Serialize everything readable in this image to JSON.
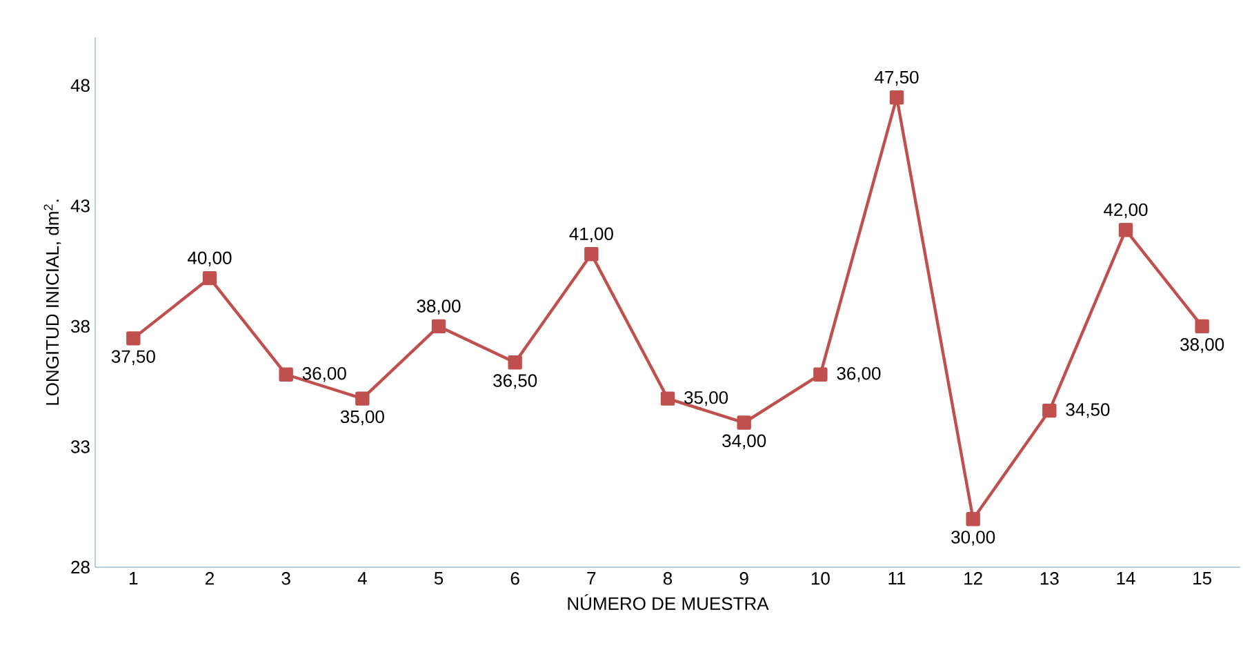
{
  "chart_data": {
    "type": "line",
    "xlabel": "NÚMERO DE MUESTRA",
    "ylabel": "LONGITUD INICIAL, dm$^{2}$.",
    "categories": [
      "1",
      "2",
      "3",
      "4",
      "5",
      "6",
      "7",
      "8",
      "9",
      "10",
      "11",
      "12",
      "13",
      "14",
      "15"
    ],
    "values": [
      37.5,
      40,
      36,
      35,
      38,
      36.5,
      41,
      35,
      34,
      36,
      47.5,
      30,
      34.5,
      42,
      38
    ],
    "value_labels": [
      "37,50",
      "40,00",
      "36,00",
      "35,00",
      "38,00",
      "36,50",
      "41,00",
      "35,00",
      "34,00",
      "36,00",
      "47,50",
      "30,00",
      "34,50",
      "42,00",
      "38,00"
    ],
    "color": "#c0504d",
    "marker": "square",
    "line_style": "solid",
    "ylim": [
      28,
      50
    ],
    "yticks": [
      28,
      33,
      38,
      43,
      48
    ],
    "grid": false
  }
}
